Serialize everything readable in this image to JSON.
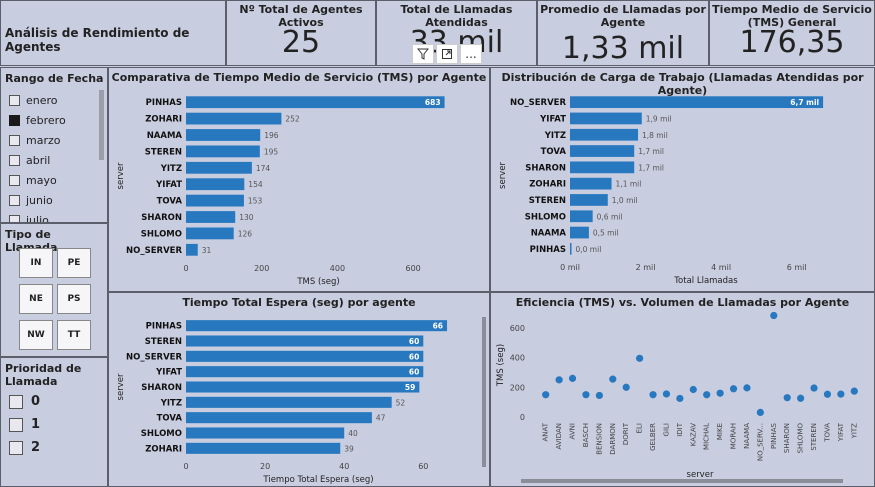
{
  "header": {
    "title": "Análisis de Rendimiento de Agentes"
  },
  "kpis": [
    {
      "title": "Nº Total de Agentes Activos",
      "value": "25"
    },
    {
      "title": "Total de Llamadas Atendidas",
      "value": "33 mil"
    },
    {
      "title": "Promedio de Llamadas por Agente",
      "value": "1,33 mil"
    },
    {
      "title": "Tiempo Medio de Servicio (TMS) General",
      "value": "176,35"
    }
  ],
  "toolbar": {
    "filter_icon": "funnel-icon",
    "focus_icon": "expand-icon",
    "more_label": "..."
  },
  "date_slicer": {
    "title": "Rango de Fecha",
    "months": [
      {
        "label": "enero",
        "checked": false
      },
      {
        "label": "febrero",
        "checked": true
      },
      {
        "label": "marzo",
        "checked": false
      },
      {
        "label": "abril",
        "checked": false
      },
      {
        "label": "mayo",
        "checked": false
      },
      {
        "label": "junio",
        "checked": false
      },
      {
        "label": "julio",
        "checked": false
      }
    ]
  },
  "call_type_slicer": {
    "title": "Tipo de Llamada",
    "tiles": [
      "IN",
      "PE",
      "NE",
      "PS",
      "NW",
      "TT"
    ]
  },
  "priority_slicer": {
    "title": "Prioridad de Llamada",
    "options": [
      "0",
      "1",
      "2"
    ]
  },
  "chart_data": [
    {
      "type": "bar",
      "orientation": "horizontal",
      "title": "Comparativa de Tiempo Medio de Servicio (TMS) por Agente",
      "xlabel": "TMS (seg)",
      "ylabel": "server",
      "categories": [
        "PINHAS",
        "ZOHARI",
        "NAAMA",
        "STEREN",
        "YITZ",
        "YIFAT",
        "TOVA",
        "SHARON",
        "SHLOMO",
        "NO_SERVER"
      ],
      "values": [
        683,
        252,
        196,
        195,
        174,
        154,
        153,
        130,
        126,
        31
      ],
      "value_labels": [
        "683",
        "252",
        "196",
        "195",
        "174",
        "154",
        "153",
        "130",
        "126",
        "31"
      ],
      "xlim": [
        0,
        700
      ],
      "xticks": [
        0,
        200,
        400,
        600
      ],
      "xtick_labels": [
        "0",
        "200",
        "400",
        "600"
      ],
      "color": "#2878c0"
    },
    {
      "type": "bar",
      "orientation": "horizontal",
      "title": "Distribución de Carga de Trabajo (Llamadas Atendidas por Agente)",
      "xlabel": "Total Llamadas",
      "ylabel": "server",
      "categories": [
        "NO_SERVER",
        "YIFAT",
        "YITZ",
        "TOVA",
        "SHARON",
        "ZOHARI",
        "STEREN",
        "SHLOMO",
        "NAAMA",
        "PINHAS"
      ],
      "values": [
        6.7,
        1.9,
        1.8,
        1.7,
        1.7,
        1.1,
        1.0,
        0.6,
        0.5,
        0.0
      ],
      "value_labels": [
        "6,7 mil",
        "1,9 mil",
        "1,8 mil",
        "1,7 mil",
        "1,7 mil",
        "1,1 mil",
        "1,0 mil",
        "0,6 mil",
        "0,5 mil",
        "0,0 mil"
      ],
      "xlim": [
        0,
        7.2
      ],
      "xticks": [
        0,
        2,
        4,
        6
      ],
      "xtick_labels": [
        "0 mil",
        "2 mil",
        "4 mil",
        "6 mil"
      ],
      "color": "#2878c0"
    },
    {
      "type": "bar",
      "orientation": "horizontal",
      "title": "Tiempo Total Espera (seg) por agente",
      "xlabel": "Tiempo Total Espera (seg)",
      "ylabel": "server",
      "categories": [
        "PINHAS",
        "STEREN",
        "NO_SERVER",
        "YIFAT",
        "SHARON",
        "YITZ",
        "TOVA",
        "SHLOMO",
        "ZOHARI"
      ],
      "values": [
        66,
        60,
        60,
        60,
        59,
        52,
        47,
        40,
        39
      ],
      "value_labels": [
        "66",
        "60",
        "60",
        "60",
        "59",
        "52",
        "47",
        "40",
        "39"
      ],
      "xlim": [
        0,
        67
      ],
      "xticks": [
        0,
        20,
        40,
        60
      ],
      "xtick_labels": [
        "0",
        "20",
        "40",
        "60"
      ],
      "color": "#2878c0"
    },
    {
      "type": "scatter",
      "title": "Eficiencia (TMS) vs. Volumen de Llamadas por Agente",
      "xlabel": "server",
      "ylabel": "TMS (seg)",
      "categories": [
        "ANAT",
        "AVIDAN",
        "AVNI",
        "BASCH",
        "BENSION",
        "DARMON",
        "DORIT",
        "ELI",
        "GELBER",
        "GILI",
        "IDIT",
        "KAZAV",
        "MICHAL",
        "MIKE",
        "MORAH",
        "NAAMA",
        "NO_SERV...",
        "PINHAS",
        "SHARON",
        "SHLOMO",
        "STEREN",
        "TOVA",
        "YIFAT",
        "YITZ"
      ],
      "values": [
        150,
        250,
        260,
        150,
        145,
        255,
        200,
        395,
        150,
        155,
        125,
        185,
        150,
        160,
        190,
        196,
        31,
        683,
        130,
        126,
        195,
        153,
        154,
        174
      ],
      "ylim": [
        0,
        700
      ],
      "yticks": [
        0,
        200,
        400,
        600
      ],
      "ytick_labels": [
        "0",
        "200",
        "400",
        "600"
      ],
      "color": "#2878c0"
    }
  ]
}
